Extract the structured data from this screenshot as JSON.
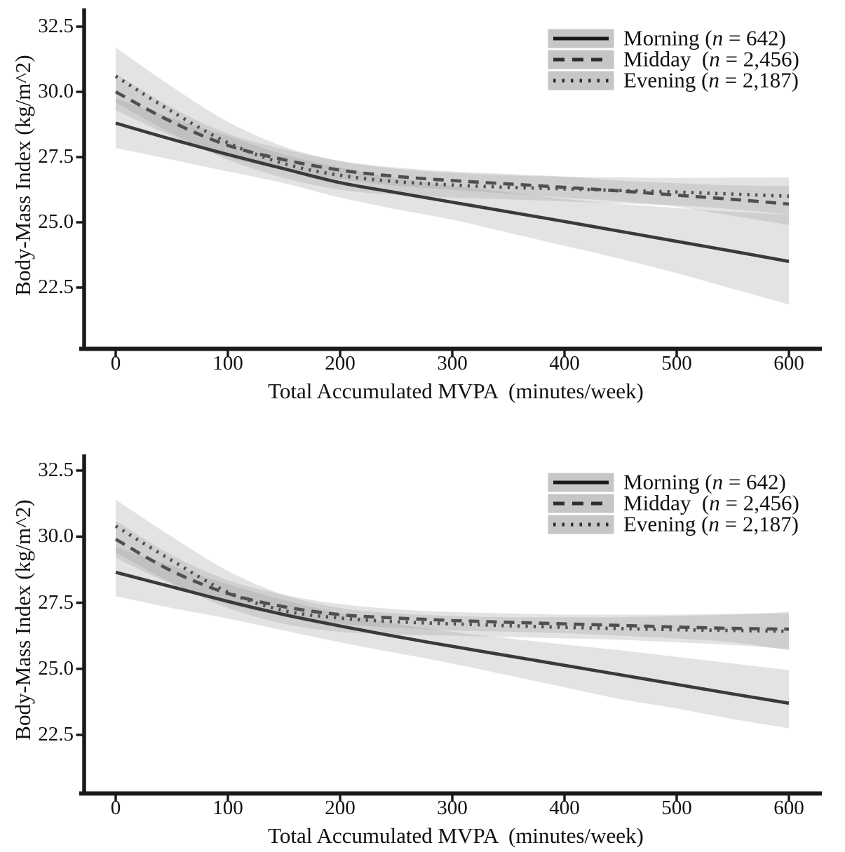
{
  "colors": {
    "axis": "#1a1a1a",
    "tick_text": "#111111",
    "line_solid": "#3a3a3a",
    "line_dashed": "#4f4f4f",
    "line_dotted": "#4f4f4f",
    "ci_band_fill": "#9a9a9a",
    "legend_key_bg": "#c6c6c6",
    "legend_sample_solid": "#191919",
    "legend_sample_dashed": "#2e2e2e"
  },
  "chart_data": [
    {
      "type": "line",
      "panel": "top",
      "title": "",
      "xlabel": "Total Accumulated MVPA  (minutes/week)",
      "ylabel": "Body-Mass Index (kg/m^2)",
      "xticks": [
        0,
        100,
        200,
        300,
        400,
        500,
        600
      ],
      "yticks": [
        32.5,
        30.0,
        27.5,
        25.0,
        22.5
      ],
      "xlim": [
        0,
        600
      ],
      "ylim": [
        20.2,
        33.3
      ],
      "grid": false,
      "legend_position": "top-right",
      "x": [
        0,
        50,
        100,
        150,
        200,
        250,
        300,
        350,
        400,
        450,
        500,
        550,
        600
      ],
      "series": [
        {
          "name": "Morning (n = 642)",
          "style": "solid",
          "values": [
            28.8,
            28.18,
            27.6,
            27.05,
            26.52,
            26.14,
            25.77,
            25.4,
            25.03,
            24.65,
            24.27,
            23.89,
            23.5
          ],
          "ci_upper": [
            29.75,
            29.0,
            28.3,
            27.6,
            27.1,
            26.7,
            26.4,
            26.15,
            25.9,
            25.7,
            25.55,
            25.4,
            25.3
          ],
          "ci_lower": [
            27.85,
            27.4,
            26.95,
            26.5,
            25.95,
            25.5,
            25.1,
            24.6,
            24.1,
            23.6,
            23.05,
            22.45,
            21.85
          ]
        },
        {
          "name": "Midday  (n = 2,456)",
          "style": "dashed",
          "values": [
            30.0,
            28.85,
            27.95,
            27.4,
            27.0,
            26.76,
            26.6,
            26.47,
            26.34,
            26.2,
            26.04,
            25.88,
            25.7
          ],
          "ci_upper": [
            30.7,
            29.4,
            28.4,
            27.8,
            27.35,
            27.1,
            26.95,
            26.85,
            26.75,
            26.6,
            26.5,
            26.42,
            26.4
          ],
          "ci_lower": [
            29.3,
            28.3,
            27.5,
            27.0,
            26.65,
            26.4,
            26.25,
            26.1,
            25.95,
            25.8,
            25.6,
            25.25,
            24.9
          ]
        },
        {
          "name": "Evening (n = 2,187)",
          "style": "dotted",
          "values": [
            30.6,
            29.25,
            28.05,
            27.25,
            26.8,
            26.56,
            26.43,
            26.34,
            26.28,
            26.22,
            26.16,
            26.08,
            26.0
          ],
          "ci_upper": [
            31.7,
            30.2,
            28.85,
            27.9,
            27.35,
            27.05,
            26.9,
            26.8,
            26.75,
            26.72,
            26.7,
            26.71,
            26.72
          ],
          "ci_lower": [
            29.6,
            28.4,
            27.4,
            26.7,
            26.25,
            26.05,
            25.95,
            25.88,
            25.8,
            25.72,
            25.65,
            25.5,
            25.3
          ]
        }
      ]
    },
    {
      "type": "line",
      "panel": "bottom",
      "title": "",
      "xlabel": "Total Accumulated MVPA  (minutes/week)",
      "ylabel": "Body-Mass Index (kg/m^2)",
      "xticks": [
        0,
        100,
        200,
        300,
        400,
        500,
        600
      ],
      "yticks": [
        32.5,
        30.0,
        27.5,
        25.0,
        22.5
      ],
      "xlim": [
        0,
        600
      ],
      "ylim": [
        20.3,
        33.1
      ],
      "grid": false,
      "legend_position": "top-right",
      "x": [
        0,
        50,
        100,
        150,
        200,
        250,
        300,
        350,
        400,
        450,
        500,
        550,
        600
      ],
      "series": [
        {
          "name": "Morning (n = 642)",
          "style": "solid",
          "values": [
            28.65,
            28.1,
            27.55,
            27.05,
            26.62,
            26.22,
            25.85,
            25.49,
            25.13,
            24.77,
            24.41,
            24.05,
            23.7
          ],
          "ci_upper": [
            29.6,
            28.9,
            28.2,
            27.6,
            27.1,
            26.7,
            26.4,
            26.15,
            25.92,
            25.7,
            25.45,
            25.2,
            24.95
          ],
          "ci_lower": [
            27.75,
            27.3,
            26.9,
            26.45,
            26.0,
            25.6,
            25.2,
            24.75,
            24.3,
            23.85,
            23.5,
            23.1,
            22.75
          ]
        },
        {
          "name": "Midday  (n = 2,456)",
          "style": "dashed",
          "values": [
            29.9,
            28.7,
            27.85,
            27.35,
            27.05,
            26.92,
            26.83,
            26.76,
            26.7,
            26.64,
            26.58,
            26.53,
            26.5
          ],
          "ci_upper": [
            30.6,
            29.3,
            28.35,
            27.8,
            27.45,
            27.25,
            27.15,
            27.1,
            27.05,
            27.05,
            27.05,
            27.08,
            27.1
          ],
          "ci_lower": [
            29.2,
            28.2,
            27.45,
            27.0,
            26.7,
            26.55,
            26.45,
            26.4,
            26.35,
            26.25,
            26.15,
            26.0,
            25.7
          ]
        },
        {
          "name": "Evening (n = 2,187)",
          "style": "dotted",
          "values": [
            30.4,
            29.1,
            27.9,
            27.2,
            26.92,
            26.78,
            26.7,
            26.63,
            26.57,
            26.52,
            26.48,
            26.45,
            26.42
          ],
          "ci_upper": [
            31.4,
            30.0,
            28.7,
            27.8,
            27.3,
            27.1,
            27.0,
            26.95,
            26.95,
            26.95,
            27.0,
            27.05,
            27.15
          ],
          "ci_lower": [
            29.4,
            28.25,
            27.3,
            26.7,
            26.4,
            26.3,
            26.25,
            26.2,
            26.15,
            26.1,
            26.0,
            25.9,
            25.75
          ]
        }
      ]
    }
  ]
}
